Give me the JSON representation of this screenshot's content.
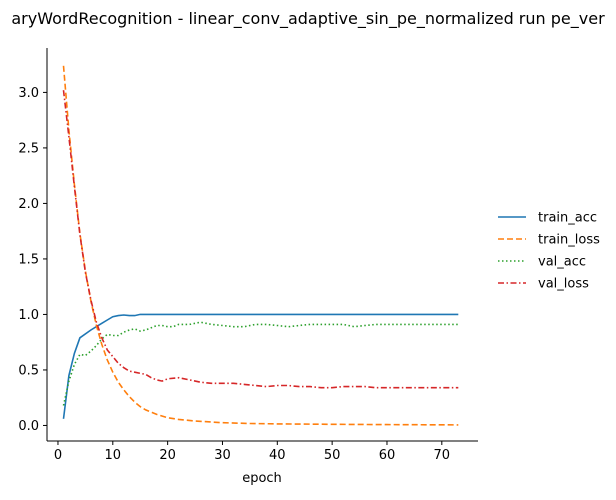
{
  "chart_data": {
    "type": "line",
    "title": "aryWordRecognition - linear_conv_adaptive_sin_pe_normalized run pe_ver",
    "xlabel": "epoch",
    "ylabel": "",
    "xlim": [
      -2,
      76.6
    ],
    "ylim": [
      -0.14,
      3.4
    ],
    "xticks": [
      0,
      10,
      20,
      30,
      40,
      50,
      60,
      70
    ],
    "yticks": [
      0.0,
      0.5,
      1.0,
      1.5,
      2.0,
      2.5,
      3.0
    ],
    "grid": false,
    "legend_position": "right",
    "series": [
      {
        "name": "train_acc",
        "color": "#1f77b4",
        "dash": "solid",
        "x": [
          1,
          2,
          3,
          4,
          6,
          8,
          9,
          10,
          11,
          12,
          13,
          14,
          15,
          20,
          30,
          40,
          50,
          60,
          70,
          73
        ],
        "y": [
          0.06,
          0.45,
          0.65,
          0.79,
          0.86,
          0.92,
          0.95,
          0.98,
          0.99,
          0.995,
          0.99,
          0.99,
          1.0,
          1.0,
          1.0,
          1.0,
          1.0,
          1.0,
          1.0,
          1.0
        ]
      },
      {
        "name": "train_loss",
        "color": "#ff7f0e",
        "dash": "dashed",
        "x": [
          1,
          2,
          3,
          4,
          5,
          6,
          7,
          8,
          9,
          10,
          11,
          12,
          13,
          14,
          15,
          16,
          18,
          20,
          22,
          25,
          30,
          35,
          40,
          50,
          60,
          73
        ],
        "y": [
          3.24,
          2.66,
          2.17,
          1.73,
          1.39,
          1.12,
          0.9,
          0.73,
          0.59,
          0.48,
          0.39,
          0.32,
          0.26,
          0.21,
          0.17,
          0.14,
          0.1,
          0.07,
          0.055,
          0.04,
          0.025,
          0.018,
          0.014,
          0.01,
          0.008,
          0.005
        ]
      },
      {
        "name": "val_acc",
        "color": "#2ca02c",
        "dash": "dotted",
        "x": [
          1,
          2,
          3,
          4,
          5,
          6,
          7,
          8,
          9,
          10,
          11,
          12,
          13,
          14,
          15,
          16,
          17,
          18,
          19,
          20,
          21,
          22,
          24,
          26,
          28,
          30,
          32,
          34,
          36,
          38,
          40,
          42,
          44,
          46,
          48,
          50,
          52,
          54,
          56,
          58,
          60,
          65,
          70,
          73
        ],
        "y": [
          0.18,
          0.4,
          0.55,
          0.64,
          0.63,
          0.67,
          0.72,
          0.78,
          0.82,
          0.81,
          0.81,
          0.84,
          0.86,
          0.87,
          0.85,
          0.86,
          0.88,
          0.9,
          0.9,
          0.89,
          0.89,
          0.91,
          0.91,
          0.93,
          0.91,
          0.9,
          0.89,
          0.89,
          0.91,
          0.91,
          0.9,
          0.89,
          0.9,
          0.91,
          0.91,
          0.91,
          0.91,
          0.89,
          0.9,
          0.91,
          0.91,
          0.91,
          0.91,
          0.91
        ]
      },
      {
        "name": "val_loss",
        "color": "#d62728",
        "dash": "dashdot",
        "x": [
          1,
          2,
          3,
          4,
          5,
          6,
          7,
          8,
          9,
          10,
          11,
          12,
          13,
          14,
          15,
          16,
          17,
          18,
          19,
          20,
          22,
          24,
          26,
          28,
          30,
          32,
          34,
          36,
          38,
          40,
          42,
          44,
          46,
          48,
          50,
          52,
          54,
          56,
          58,
          60,
          62,
          64,
          66,
          68,
          70,
          73
        ],
        "y": [
          3.02,
          2.6,
          2.15,
          1.72,
          1.38,
          1.13,
          0.93,
          0.79,
          0.68,
          0.62,
          0.56,
          0.52,
          0.49,
          0.48,
          0.47,
          0.46,
          0.43,
          0.41,
          0.4,
          0.42,
          0.43,
          0.41,
          0.39,
          0.38,
          0.38,
          0.38,
          0.37,
          0.36,
          0.35,
          0.36,
          0.36,
          0.35,
          0.35,
          0.34,
          0.34,
          0.35,
          0.35,
          0.35,
          0.34,
          0.34,
          0.34,
          0.34,
          0.34,
          0.34,
          0.34,
          0.34
        ]
      }
    ]
  }
}
